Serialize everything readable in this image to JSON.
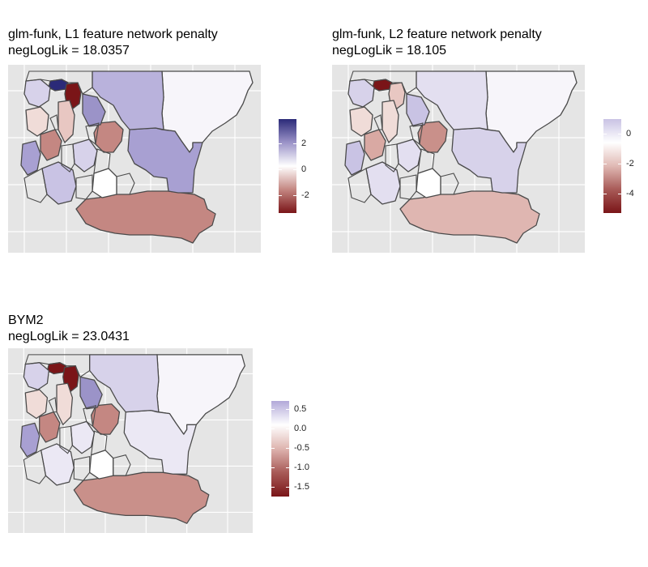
{
  "colors": {
    "panel_bg": "#e5e5e5",
    "gridline": "#ffffff",
    "border": "#4a4a4a",
    "dark_red": "#7a1518",
    "mid_red": "#c48782",
    "light_red": "#f0dcd8",
    "white": "#f7f5fa",
    "light_purple": "#d7d2ea",
    "mid_purple": "#a8a0d2",
    "dark_blue": "#2b2a78"
  },
  "panels": [
    {
      "id": "l1",
      "title_line1": "glm-funk, L1 feature network penalty",
      "title_line2": "negLogLik = 18.0357",
      "legend": {
        "gradient": [
          "#2b2a78",
          "#9b93c8",
          "#ffffff",
          "#c48782",
          "#7a1518"
        ],
        "ticks": [
          {
            "label": "2",
            "value": 2
          },
          {
            "label": "0",
            "value": 0
          },
          {
            "label": "-2",
            "value": -2
          }
        ],
        "range": [
          3.9,
          -3.4
        ]
      },
      "fills": {
        "big_east": "#f7f5fa",
        "big_south": "#c48782",
        "central_big": "#a8a0d2",
        "north_mid": "#b9b2dc",
        "central_red": "#c48782",
        "north_left_top": "#2b2a78",
        "north_left_mid": "#7a1518",
        "west_small_a": "#d7d2ea",
        "west_small_b": "#f0dcd8",
        "west_small_c": "#c48782",
        "west_small_d": "#a8a0d2",
        "center_white": "#ffffff",
        "mid_block": "#9b93c8",
        "strip_a": "#e8c7c2",
        "strip_b": "#d7d2ea",
        "south_left": "#c9c3e4"
      }
    },
    {
      "id": "l2",
      "title_line1": "glm-funk, L2 feature network penalty",
      "title_line2": "negLogLik = 18.105",
      "legend": {
        "gradient": [
          "#c9c3e4",
          "#ffffff",
          "#e0b9b4",
          "#a85a57",
          "#7a1518"
        ],
        "ticks": [
          {
            "label": "0",
            "value": 0
          },
          {
            "label": "-2",
            "value": -2
          },
          {
            "label": "-4",
            "value": -4
          }
        ],
        "range": [
          1.0,
          -5.3
        ]
      },
      "fills": {
        "big_east": "#f7f5fa",
        "big_south": "#dfb6b1",
        "central_big": "#d7d2ea",
        "north_mid": "#e3dff0",
        "central_red": "#c9908a",
        "north_left_top": "#7a1518",
        "north_left_mid": "#e8c7c2",
        "west_small_a": "#d7d2ea",
        "west_small_b": "#f0dcd8",
        "west_small_c": "#d9a9a3",
        "west_small_d": "#c9c3e4",
        "center_white": "#ffffff",
        "mid_block": "#c9c3e4",
        "strip_a": "#f0dcd8",
        "strip_b": "#e3dff0",
        "south_left": "#e3dff0"
      }
    },
    {
      "id": "bym2",
      "title_line1": "BYM2",
      "title_line2": "negLogLik = 23.0431",
      "legend": {
        "gradient": [
          "#b2a9d9",
          "#ffffff",
          "#deb4af",
          "#a85a57",
          "#7a1518"
        ],
        "ticks": [
          {
            "label": "0.5",
            "value": 0.5
          },
          {
            "label": "0.0",
            "value": 0.0
          },
          {
            "label": "-0.5",
            "value": -0.5
          },
          {
            "label": "-1.0",
            "value": -1.0
          },
          {
            "label": "-1.5",
            "value": -1.5
          }
        ],
        "range": [
          0.7,
          -1.75
        ]
      },
      "fills": {
        "big_east": "#f7f5fa",
        "big_south": "#c9908a",
        "central_big": "#ebe8f4",
        "north_mid": "#d7d2ea",
        "central_red": "#c48782",
        "north_left_top": "#7a1518",
        "north_left_mid": "#7a1518",
        "west_small_a": "#d7d2ea",
        "west_small_b": "#f0dcd8",
        "west_small_c": "#c48782",
        "west_small_d": "#a8a0d2",
        "center_white": "#ffffff",
        "mid_block": "#9b93c8",
        "strip_a": "#f0dcd8",
        "strip_b": "#ebe8f4",
        "south_left": "#ebe8f4"
      }
    }
  ]
}
